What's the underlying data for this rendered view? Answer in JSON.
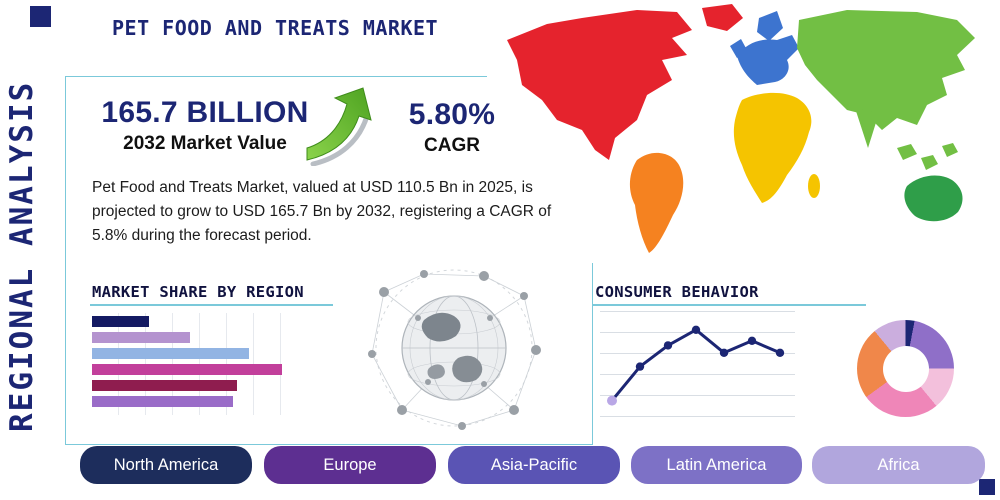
{
  "header": {
    "title": "PET FOOD AND TREATS MARKET"
  },
  "sidebar_title": "REGIONAL ANALYSIS",
  "stats": {
    "market_value": "165.7 BILLION",
    "market_value_label": "2032 Market Value",
    "cagr_value": "5.80%",
    "cagr_label": "CAGR"
  },
  "description": "Pet Food and Treats Market, valued at USD 110.5 Bn in 2025, is projected to grow to USD 165.7 Bn by 2032, registering a CAGR of 5.8% during the forecast period.",
  "sections": {
    "market_share_title": "MARKET SHARE BY REGION",
    "consumer_behavior_title": "CONSUMER BEHAVIOR"
  },
  "region_buttons": [
    {
      "label": "North America",
      "color": "#1d2d5c"
    },
    {
      "label": "Europe",
      "color": "#5d2f91"
    },
    {
      "label": "Asia-Pacific",
      "color": "#5a54b4"
    },
    {
      "label": "Latin America",
      "color": "#7d71c6"
    },
    {
      "label": "Africa",
      "color": "#b1a6dd"
    }
  ],
  "colors": {
    "navy": "#1c2674",
    "accent_cyan": "#7bc9da",
    "arrow_green": "#5cb22e"
  },
  "map": {
    "colors": {
      "north-america": "#e5232d",
      "greenland": "#e5232d",
      "south-america": "#f58220",
      "europe": "#3d74cf",
      "uk": "#3d74cf",
      "scandinavia": "#3d74cf",
      "africa": "#f5c400",
      "madagascar": "#f5c400",
      "asia": "#72bf44",
      "india": "#72bf44",
      "southeast-asia": "#72bf44",
      "australia": "#2f9e49"
    }
  },
  "chart_data": [
    {
      "type": "bar",
      "title": "MARKET SHARE BY REGION",
      "orientation": "horizontal",
      "values": [
        29,
        50,
        80,
        97,
        74,
        72
      ],
      "value_scale": "relative bar length, % of plot width (bars unlabeled in source)",
      "colors": [
        "#141a63",
        "#b493cf",
        "#92b4e3",
        "#c23f9b",
        "#8f1d4f",
        "#9a6cc8"
      ],
      "xlim": [
        0,
        100
      ],
      "grid": true
    },
    {
      "type": "line",
      "title": "CONSUMER BEHAVIOR",
      "x": [
        1,
        2,
        3,
        4,
        5,
        6,
        7
      ],
      "values": [
        8,
        45,
        68,
        85,
        60,
        73,
        60
      ],
      "value_scale": "relative height, % of plot height (axis unlabeled in source)",
      "line_color": "#1c2674",
      "marker_color": "#1c2674",
      "start_marker_color": "#b9a7e6",
      "ylim": [
        0,
        100
      ],
      "grid": true
    },
    {
      "type": "pie",
      "donut": true,
      "slices": [
        {
          "value": 3,
          "color": "#1c2674"
        },
        {
          "value": 22,
          "color": "#8f6fc8"
        },
        {
          "value": 14,
          "color": "#f3c0dc"
        },
        {
          "value": 26,
          "color": "#ef86b8"
        },
        {
          "value": 24,
          "color": "#f0874a"
        },
        {
          "value": 11,
          "color": "#cbaede"
        }
      ],
      "labels_visible": false
    }
  ]
}
